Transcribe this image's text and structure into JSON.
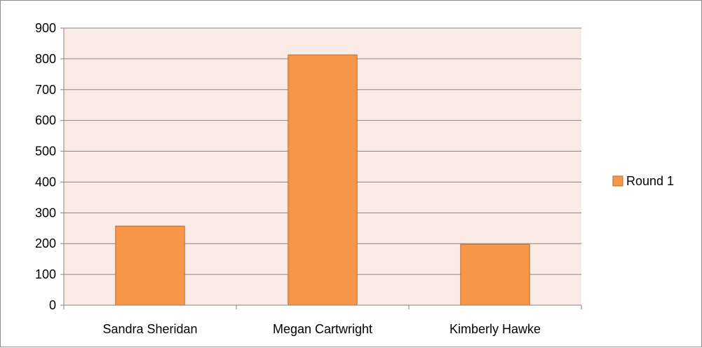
{
  "chart_data": {
    "type": "bar",
    "title": "",
    "xlabel": "",
    "ylabel": "",
    "categories": [
      "Sandra Sheridan",
      "Megan Cartwright",
      "Kimberly Hawke"
    ],
    "series": [
      {
        "name": "Round 1",
        "values": [
          257,
          813,
          198
        ]
      }
    ],
    "ylim": [
      0,
      900
    ],
    "yticks": [
      "0",
      "100",
      "200",
      "300",
      "400",
      "500",
      "600",
      "700",
      "800",
      "900"
    ],
    "grid": true,
    "legend_position": "right",
    "colors": {
      "bar_fill": "#F79646",
      "bar_stroke": "#B66D31",
      "plot_background": "#FBEBE7",
      "gridline": "#868686",
      "axis": "#868686"
    }
  }
}
